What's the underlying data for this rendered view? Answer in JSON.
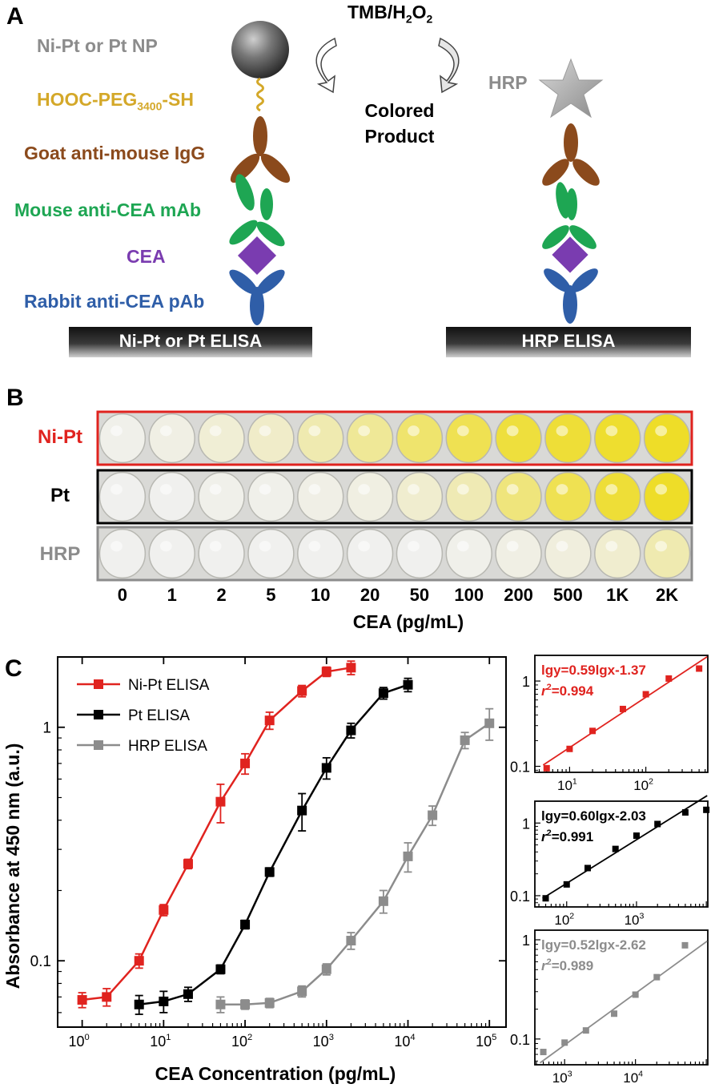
{
  "panelA": {
    "letter": "A",
    "np_label": "Ni-Pt or Pt NP",
    "peg_main": "HOOC-PEG",
    "peg_sub": "3400",
    "peg_end": "-SH",
    "goat_label": "Goat anti-mouse IgG",
    "mouse_label": "Mouse anti-CEA mAb",
    "cea_label": "CEA",
    "rabbit_label": "Rabbit anti-CEA pAb",
    "elisa_left": "Ni-Pt or Pt ELISA",
    "elisa_right": "HRP ELISA",
    "tmb_main": "TMB/H",
    "tmb_sub1": "2",
    "tmb_mid": "O",
    "tmb_sub2": "2",
    "product_line1": "Colored",
    "product_line2": "Product",
    "hrp_label": "HRP",
    "colors": {
      "np_gray": "#8c8c8c",
      "peg": "#d4a829",
      "goat": "#8b4a1c",
      "mouse": "#1ea653",
      "cea": "#7a3cb0",
      "rabbit": "#2f5ea8"
    }
  },
  "panelB": {
    "letter": "B",
    "rows": [
      {
        "label": "Ni-Pt",
        "color": "#e0231f"
      },
      {
        "label": "Pt",
        "color": "#000000"
      },
      {
        "label": "HRP",
        "color": "#8c8c8c"
      }
    ],
    "concentrations": [
      "0",
      "1",
      "2",
      "5",
      "10",
      "20",
      "50",
      "100",
      "200",
      "500",
      "1K",
      "2K"
    ],
    "xlabel": "CEA (pg/mL)"
  },
  "panelC": {
    "letter": "C",
    "main_chart": {
      "xlabel": "CEA Concentration (pg/mL)",
      "ylabel": "Absorbance at 450 nm (a.u.)",
      "xticks": [
        {
          "b": "10",
          "e": "0"
        },
        {
          "b": "10",
          "e": "1"
        },
        {
          "b": "10",
          "e": "2"
        },
        {
          "b": "10",
          "e": "3"
        },
        {
          "b": "10",
          "e": "4"
        },
        {
          "b": "10",
          "e": "5"
        }
      ],
      "yticks": [
        "0.1",
        "1"
      ],
      "legend": [
        "Ni-Pt ELISA",
        "Pt ELISA",
        "HRP ELISA"
      ]
    },
    "insets": [
      {
        "eq": "lgy=0.59lgx-1.37",
        "r2": "=0.994",
        "r": "r",
        "sup": "2",
        "color": "#e0231f"
      },
      {
        "eq": "lgy=0.60lgx-2.03",
        "r2": "=0.991",
        "r": "r",
        "sup": "2",
        "color": "#000000"
      },
      {
        "eq": "lgy=0.52lgx-2.62",
        "r2": "=0.989",
        "r": "r",
        "sup": "2",
        "color": "#8c8c8c"
      }
    ]
  },
  "chart_data": [
    {
      "type": "line",
      "title": "",
      "xlabel": "CEA Concentration (pg/mL)",
      "ylabel": "Absorbance at 450 nm (a.u.)",
      "xscale": "log",
      "yscale": "log",
      "xlim": [
        0.5,
        160000
      ],
      "ylim": [
        0.052,
        2.0
      ],
      "legend_position": "top-left",
      "series": [
        {
          "name": "Ni-Pt ELISA",
          "color": "#e0231f",
          "x": [
            1,
            2,
            5,
            10,
            20,
            50,
            100,
            200,
            500,
            1000,
            2000
          ],
          "y": [
            0.068,
            0.07,
            0.1,
            0.165,
            0.26,
            0.48,
            0.7,
            1.07,
            1.43,
            1.73,
            1.8
          ],
          "err": [
            0.005,
            0.006,
            0.007,
            0.009,
            0.012,
            0.09,
            0.07,
            0.09,
            0.08,
            0.08,
            0.12
          ]
        },
        {
          "name": "Pt ELISA",
          "color": "#000000",
          "x": [
            5,
            10,
            20,
            50,
            100,
            200,
            500,
            1000,
            2000,
            5000,
            10000
          ],
          "y": [
            0.065,
            0.067,
            0.072,
            0.092,
            0.143,
            0.24,
            0.44,
            0.67,
            0.97,
            1.4,
            1.52
          ],
          "err": [
            0.006,
            0.007,
            0.005,
            0.004,
            0.006,
            0.01,
            0.08,
            0.07,
            0.07,
            0.08,
            0.1
          ]
        },
        {
          "name": "HRP ELISA",
          "color": "#8c8c8c",
          "x": [
            50,
            100,
            200,
            500,
            1000,
            2000,
            5000,
            10000,
            20000,
            50000,
            100000
          ],
          "y": [
            0.065,
            0.065,
            0.066,
            0.074,
            0.092,
            0.122,
            0.18,
            0.28,
            0.42,
            0.88,
            1.04
          ],
          "err": [
            0.005,
            0.003,
            0.003,
            0.004,
            0.005,
            0.01,
            0.02,
            0.04,
            0.04,
            0.07,
            0.16
          ]
        }
      ]
    },
    {
      "type": "scatter",
      "title": "",
      "xscale": "log",
      "yscale": "log",
      "xlim": [
        3.5,
        650
      ],
      "ylim": [
        0.085,
        2.0
      ],
      "xticks": [
        {
          "b": "10",
          "e": "1"
        },
        {
          "b": "10",
          "e": "2"
        }
      ],
      "yticks": [
        "0.1",
        "1"
      ],
      "color": "#e0231f",
      "x": [
        5,
        10,
        20,
        50,
        100,
        200,
        500
      ],
      "y": [
        0.095,
        0.16,
        0.26,
        0.47,
        0.7,
        1.07,
        1.4
      ],
      "fit": {
        "slope": 0.59,
        "intercept": -1.37
      }
    },
    {
      "type": "scatter",
      "title": "",
      "xscale": "log",
      "yscale": "log",
      "xlim": [
        35,
        10500
      ],
      "ylim": [
        0.07,
        2.0
      ],
      "xticks": [
        {
          "b": "10",
          "e": "2"
        },
        {
          "b": "10",
          "e": "3"
        }
      ],
      "yticks": [
        "0.1",
        "1"
      ],
      "color": "#000000",
      "x": [
        50,
        100,
        200,
        500,
        1000,
        2000,
        5000,
        10000
      ],
      "y": [
        0.092,
        0.143,
        0.24,
        0.44,
        0.67,
        0.97,
        1.4,
        1.52
      ],
      "fit": {
        "slope": 0.6,
        "intercept": -2.03
      }
    },
    {
      "type": "scatter",
      "title": "",
      "xscale": "log",
      "yscale": "log",
      "xlim": [
        380,
        105000
      ],
      "ylim": [
        0.055,
        1.25
      ],
      "xticks": [
        {
          "b": "10",
          "e": "3"
        },
        {
          "b": "10",
          "e": "4"
        }
      ],
      "yticks": [
        "0.1",
        "1"
      ],
      "color": "#8c8c8c",
      "x": [
        500,
        1000,
        2000,
        5000,
        10000,
        20000,
        50000
      ],
      "y": [
        0.074,
        0.092,
        0.122,
        0.18,
        0.28,
        0.42,
        0.88
      ],
      "fit": {
        "slope": 0.52,
        "intercept": -2.62
      }
    }
  ]
}
